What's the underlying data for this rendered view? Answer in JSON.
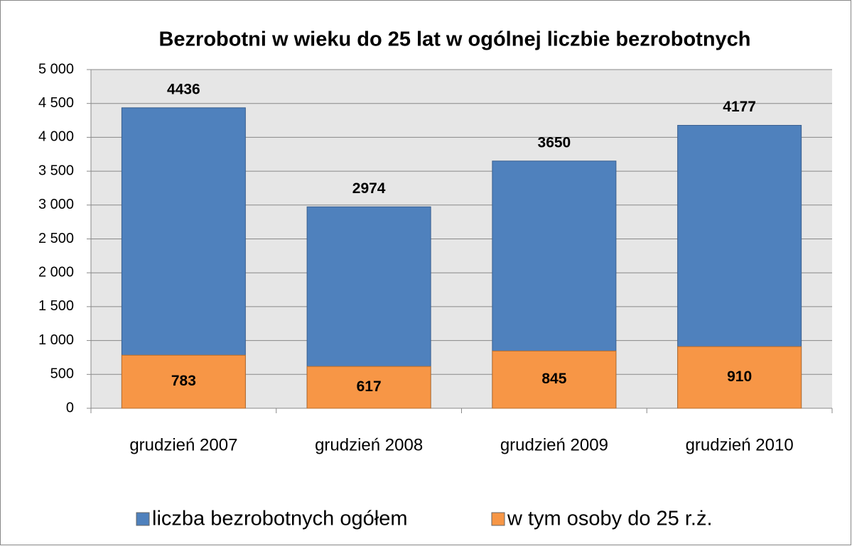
{
  "chart_data": {
    "type": "bar",
    "stacked": false,
    "title": "Bezrobotni w wieku do 25 lat w ogólnej liczbie bezrobotnych",
    "categories": [
      "grudzień 2007",
      "grudzień 2008",
      "grudzień 2009",
      "grudzień 2010"
    ],
    "series": [
      {
        "name": "liczba bezrobotnych ogółem",
        "color": "#4f81bd",
        "values": [
          4436,
          2974,
          3650,
          4177
        ]
      },
      {
        "name": "w tym osoby do 25 r.ż.",
        "color": "#f79646",
        "values": [
          783,
          617,
          845,
          910
        ]
      }
    ],
    "ylim": [
      0,
      5000
    ],
    "yticks": [
      0,
      500,
      {
        "value": 1000,
        "label": "1 000"
      },
      {
        "value": 1500,
        "label": "1 500"
      },
      {
        "value": 2000,
        "label": "2 000"
      },
      {
        "value": 2500,
        "label": "2 500"
      },
      {
        "value": 3000,
        "label": "3 000"
      },
      {
        "value": 3500,
        "label": "3 500"
      },
      {
        "value": 4000,
        "label": "4 000"
      },
      {
        "value": 4500,
        "label": "4 500"
      },
      {
        "value": 5000,
        "label": "5 000"
      }
    ],
    "grid": true,
    "legend": "bottom"
  }
}
